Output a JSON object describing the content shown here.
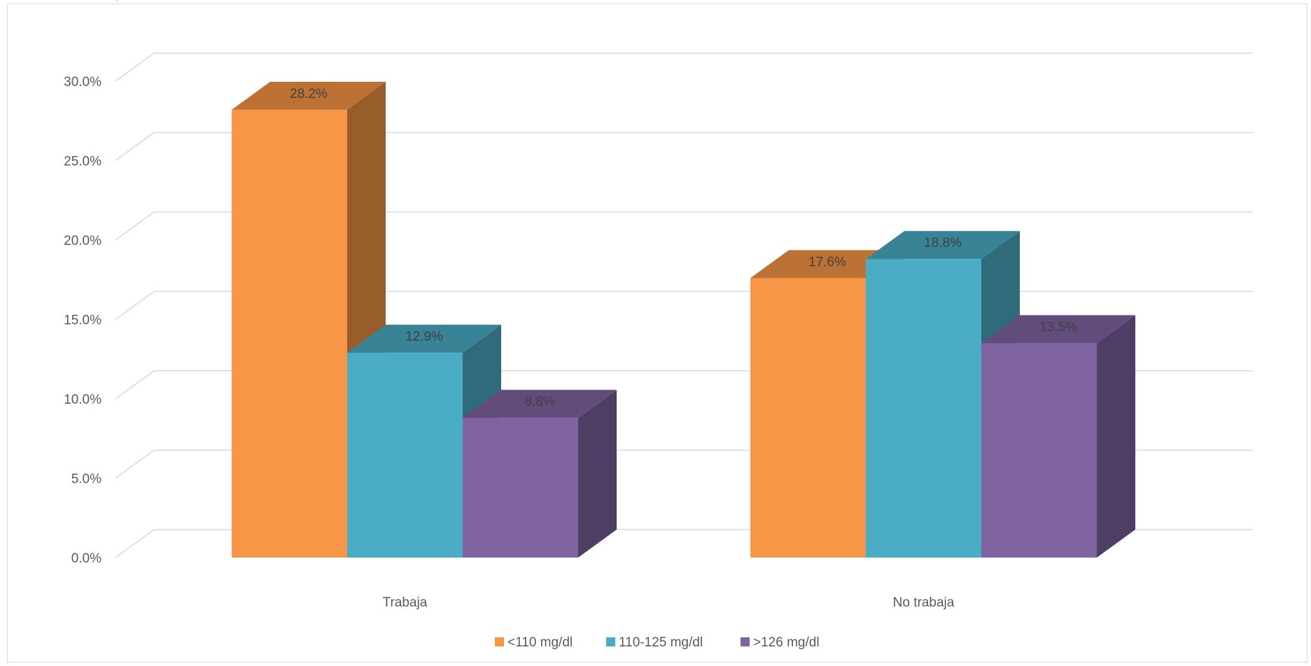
{
  "chart_data": {
    "type": "bar",
    "style": "3d-clustered-column",
    "categories": [
      "Trabaja",
      "No trabaja"
    ],
    "series": [
      {
        "name": "<110 mg/dl",
        "values": [
          28.2,
          17.6
        ],
        "color": "#F79646",
        "labels": [
          "28.2%",
          "17.6%"
        ]
      },
      {
        "name": "110-125 mg/dl",
        "values": [
          12.9,
          18.8
        ],
        "color": "#4BACC6",
        "labels": [
          "12.9%",
          "18.8%"
        ]
      },
      {
        "name": ">126 mg/dl",
        "values": [
          8.8,
          13.5
        ],
        "color": "#8064A2",
        "labels": [
          "8.8%",
          "13.5%"
        ]
      }
    ],
    "y_ticks": [
      "0.0%",
      "5.0%",
      "10.0%",
      "15.0%",
      "20.0%",
      "25.0%",
      "30.0%"
    ],
    "ylim": [
      0,
      35
    ],
    "grid": true,
    "legend_position": "bottom",
    "title": "",
    "xlabel": "",
    "ylabel": ""
  }
}
